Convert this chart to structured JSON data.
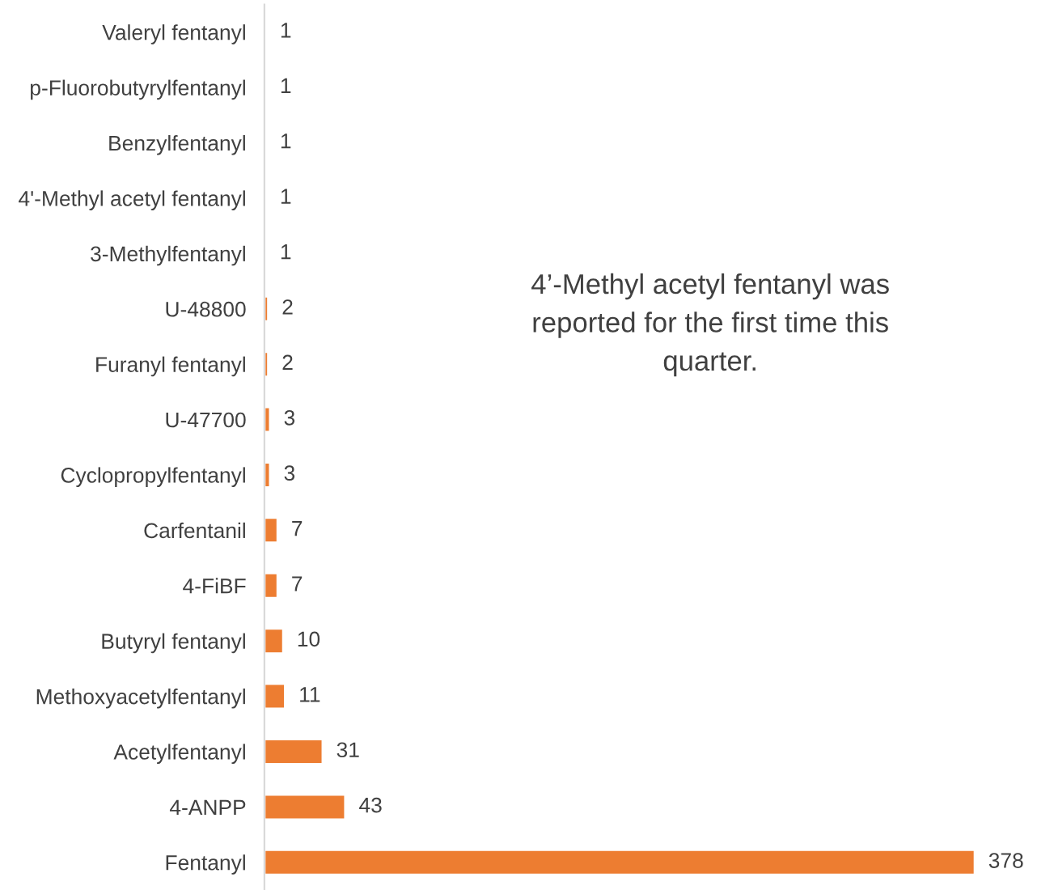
{
  "chart_data": {
    "type": "bar",
    "orientation": "horizontal",
    "categories": [
      "Valeryl fentanyl",
      "p-Fluorobutyrylfentanyl",
      "Benzylfentanyl",
      "4'-Methyl acetyl fentanyl",
      "3-Methylfentanyl",
      "U-48800",
      "Furanyl fentanyl",
      "U-47700",
      "Cyclopropylfentanyl",
      "Carfentanil",
      "4-FiBF",
      "Butyryl fentanyl",
      "Methoxyacetylfentanyl",
      "Acetylfentanyl",
      "4-ANPP",
      "Fentanyl"
    ],
    "values": [
      1,
      1,
      1,
      1,
      1,
      2,
      2,
      3,
      3,
      7,
      7,
      10,
      11,
      31,
      43,
      378
    ],
    "color": "#ed7d31",
    "data_labels": true,
    "grid": false,
    "legend": false,
    "annotations": [
      "4’-Methyl acetyl fentanyl was\nreported for the first time this\nquarter."
    ]
  }
}
